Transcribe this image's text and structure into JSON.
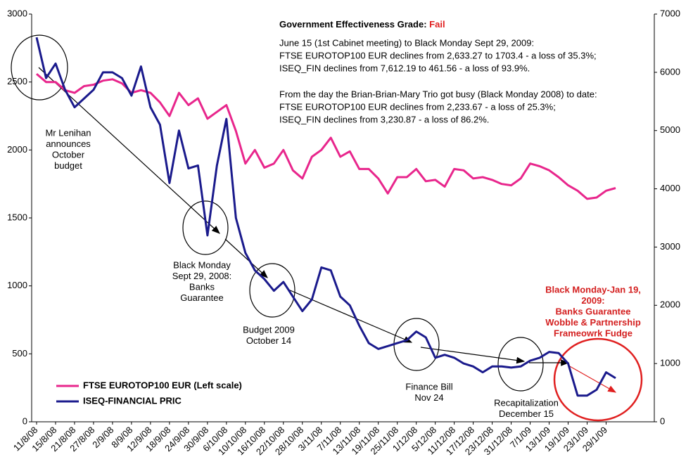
{
  "chart_data": {
    "type": "line",
    "grade_label": "Government Effectiveness Grade:",
    "grade": "Fail",
    "summary": [
      "June 15 (1st Cabinet meeting) to Black Monday Sept 29, 2009:",
      "FTSE EUROTOP100 EUR declines from 2,633.27 to 1703.4 - a loss of 35.3%;",
      "ISEQ_FIN declines from 7,612.19 to 461.56 - a loss of 93.9%.",
      "From the day the Brian-Brian-Mary Trio got busy (Black Monday 2008) to date:",
      "FTSE EUROTOP100 EUR declines from 2,233.67 - a loss of 25.3%;",
      "ISEQ_FIN declines from 3,230.87 - a loss of 86.2%."
    ],
    "annotations": [
      {
        "lines": [
          "Mr Lenihan",
          "announces",
          "October",
          "budget"
        ]
      },
      {
        "lines": [
          "Black Monday",
          "Sept 29, 2008:",
          "Banks",
          "Guarantee"
        ]
      },
      {
        "lines": [
          "Budget 2009",
          "October 14"
        ]
      },
      {
        "lines": [
          "Finance Bill",
          "Nov 24"
        ]
      },
      {
        "lines": [
          "Recapitalization",
          "December 15"
        ]
      },
      {
        "lines": [
          "Black Monday-Jan 19,",
          "2009:",
          "Banks Guarantee",
          "Wobble & Partnership",
          "Frameowrk Fudge"
        ]
      }
    ],
    "categories": [
      "11/8/08",
      null,
      "15/8/08",
      null,
      "21/8/08",
      null,
      "27/8/08",
      null,
      "2/9/08",
      null,
      "8/9/08",
      null,
      "12/9/08",
      null,
      "18/9/08",
      null,
      "24/9/08",
      null,
      "30/9/08",
      null,
      "6/10/08",
      null,
      "10/10/08",
      null,
      "16/10/08",
      null,
      "22/10/08",
      null,
      "28/10/08",
      null,
      "3/11/08",
      null,
      "7/11/08",
      null,
      "13/11/08",
      null,
      "19/11/08",
      null,
      "25/11/08",
      null,
      "1/12/08",
      null,
      "5/12/08",
      null,
      "11/12/08",
      null,
      "17/12/08",
      null,
      "23/12/08",
      null,
      "31/12/08",
      null,
      "7/1/09",
      null,
      "13/1/09",
      null,
      "19/1/09",
      null,
      "23/1/09",
      null,
      "29/1/09",
      null
    ],
    "series": [
      {
        "name": "FTSE EUROTOP100 EUR (Left scale)",
        "color": "#e8268c",
        "axis": "y",
        "values": [
          2560,
          2500,
          2500,
          2440,
          2420,
          2470,
          2480,
          2510,
          2520,
          2490,
          2420,
          2440,
          2420,
          2350,
          2250,
          2420,
          2330,
          2380,
          2230,
          2280,
          2330,
          2140,
          1900,
          2000,
          1870,
          1900,
          2000,
          1850,
          1790,
          1950,
          2000,
          2090,
          1950,
          1990,
          1860,
          1860,
          1790,
          1680,
          1800,
          1800,
          1860,
          1770,
          1780,
          1730,
          1860,
          1850,
          1790,
          1800,
          1780,
          1750,
          1740,
          1790,
          1900,
          1880,
          1850,
          1800,
          1740,
          1700,
          1640,
          1650,
          1700,
          1720
        ]
      },
      {
        "name": "ISEQ-FINANCIAL PRIC",
        "color": "#1a1a8c",
        "axis": "y2",
        "values": [
          6600,
          5900,
          6150,
          5700,
          5400,
          5550,
          5700,
          6000,
          6000,
          5900,
          5600,
          6100,
          5400,
          5100,
          4100,
          5000,
          4350,
          4400,
          3200,
          4400,
          5200,
          3500,
          2900,
          2600,
          2450,
          2250,
          2400,
          2150,
          1900,
          2100,
          2650,
          2600,
          2150,
          2000,
          1650,
          1350,
          1250,
          1300,
          1350,
          1400,
          1550,
          1450,
          1100,
          1150,
          1100,
          1000,
          950,
          850,
          950,
          950,
          930,
          950,
          1050,
          1100,
          1200,
          1180,
          1000,
          450,
          450,
          550,
          850,
          750
        ]
      }
    ],
    "ylim": [
      0,
      3000
    ],
    "yticks": [
      0,
      500,
      1000,
      1500,
      2000,
      2500,
      3000
    ],
    "y2lim": [
      0,
      7000
    ],
    "y2ticks": [
      0,
      1000,
      2000,
      3000,
      4000,
      5000,
      6000,
      7000
    ],
    "legend": "lower left",
    "grid": false
  }
}
